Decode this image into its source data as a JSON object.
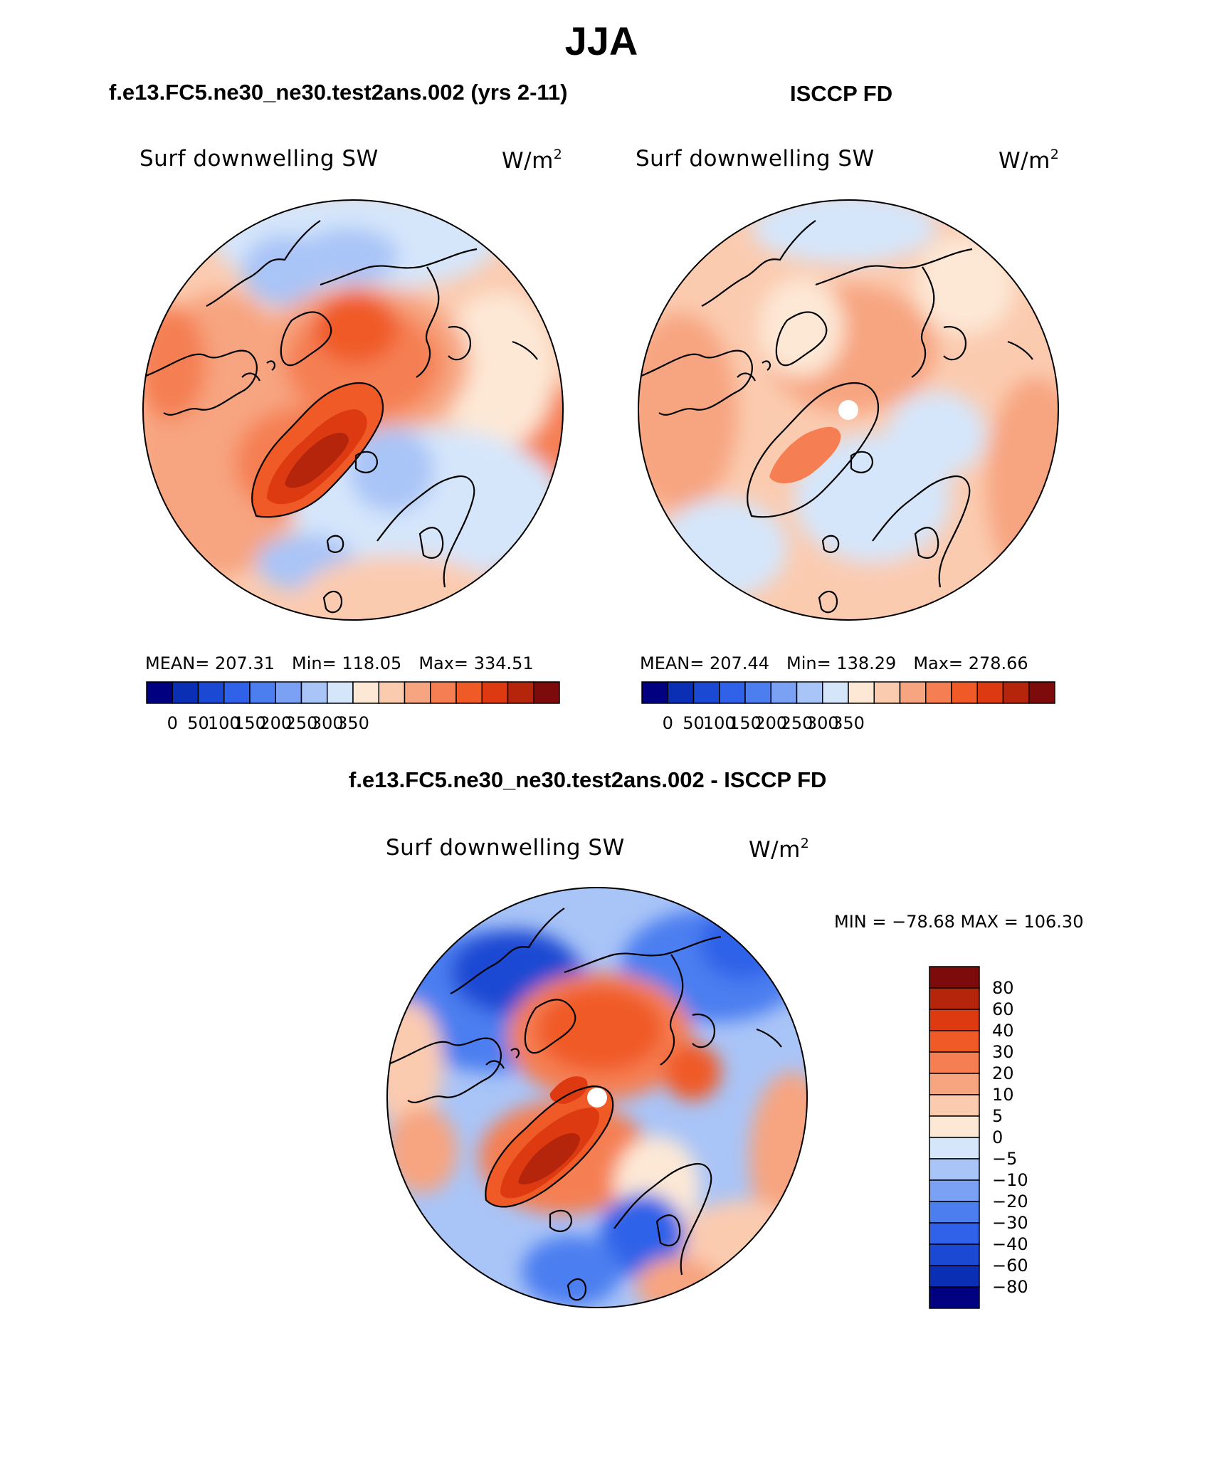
{
  "title": "JJA",
  "variable_label": "Surf downwelling SW",
  "units": {
    "base": "W/m",
    "superscript": "2"
  },
  "panels": [
    {
      "title": "f.e13.FC5.ne30_ne30.test2ans.002 (yrs 2-11)",
      "stats": {
        "mean_label": "MEAN=",
        "mean": "207.31",
        "min_label": "Min=",
        "min": "118.05",
        "max_label": "Max=",
        "max": "334.51"
      }
    },
    {
      "title": "ISCCP FD",
      "stats": {
        "mean_label": "MEAN=",
        "mean": "207.44",
        "min_label": "Min=",
        "min": "138.29",
        "max_label": "Max=",
        "max": "278.66"
      }
    },
    {
      "title": "f.e13.FC5.ne30_ne30.test2ans.002 - ISCCP FD",
      "minmax": "MIN = −78.68 MAX = 106.30"
    }
  ],
  "chart_data": [
    {
      "type": "heatmap",
      "projection": "north polar stereographic",
      "title": "f.e13.FC5.ne30_ne30.test2ans.002 (yrs 2-11)",
      "label": "Surf downwelling SW",
      "units": "W/m2",
      "stats": {
        "mean": 207.31,
        "min": 118.05,
        "max": 334.51
      },
      "colorbar": {
        "orientation": "horizontal",
        "tick_labels": [
          "0",
          "50",
          "100",
          "150",
          "200",
          "250",
          "300",
          "350"
        ],
        "colors": [
          "#000080",
          "#0a2fb4",
          "#1c49d3",
          "#2f62e8",
          "#4c7ef0",
          "#7aa1f3",
          "#a9c4f7",
          "#d5e6fb",
          "#fde8d6",
          "#fbcbb0",
          "#f7a480",
          "#f57f53",
          "#f05a27",
          "#dd3a12",
          "#b5250c",
          "#7d0b0b"
        ]
      }
    },
    {
      "type": "heatmap",
      "projection": "north polar stereographic",
      "title": "ISCCP FD",
      "label": "Surf downwelling SW",
      "units": "W/m2",
      "stats": {
        "mean": 207.44,
        "min": 138.29,
        "max": 278.66
      },
      "colorbar": {
        "orientation": "horizontal",
        "tick_labels": [
          "0",
          "50",
          "100",
          "150",
          "200",
          "250",
          "300",
          "350"
        ],
        "colors": [
          "#000080",
          "#0a2fb4",
          "#1c49d3",
          "#2f62e8",
          "#4c7ef0",
          "#7aa1f3",
          "#a9c4f7",
          "#d5e6fb",
          "#fde8d6",
          "#fbcbb0",
          "#f7a480",
          "#f57f53",
          "#f05a27",
          "#dd3a12",
          "#b5250c",
          "#7d0b0b"
        ]
      }
    },
    {
      "type": "heatmap",
      "projection": "north polar stereographic",
      "title": "f.e13.FC5.ne30_ne30.test2ans.002 - ISCCP FD",
      "label": "Surf downwelling SW",
      "units": "W/m2",
      "stats": {
        "min": -78.68,
        "max": 106.3
      },
      "colorbar": {
        "orientation": "vertical",
        "tick_labels": [
          "80",
          "60",
          "40",
          "30",
          "20",
          "10",
          "5",
          "0",
          "−5",
          "−10",
          "−20",
          "−30",
          "−40",
          "−60",
          "−80"
        ],
        "colors": [
          "#7d0b0b",
          "#b5250c",
          "#dd3a12",
          "#f05a27",
          "#f57f53",
          "#f7a480",
          "#fbcbb0",
          "#fde8d6",
          "#d5e6fb",
          "#a9c4f7",
          "#7aa1f3",
          "#4c7ef0",
          "#2f62e8",
          "#1c49d3",
          "#0a2fb4",
          "#000080"
        ]
      }
    }
  ]
}
